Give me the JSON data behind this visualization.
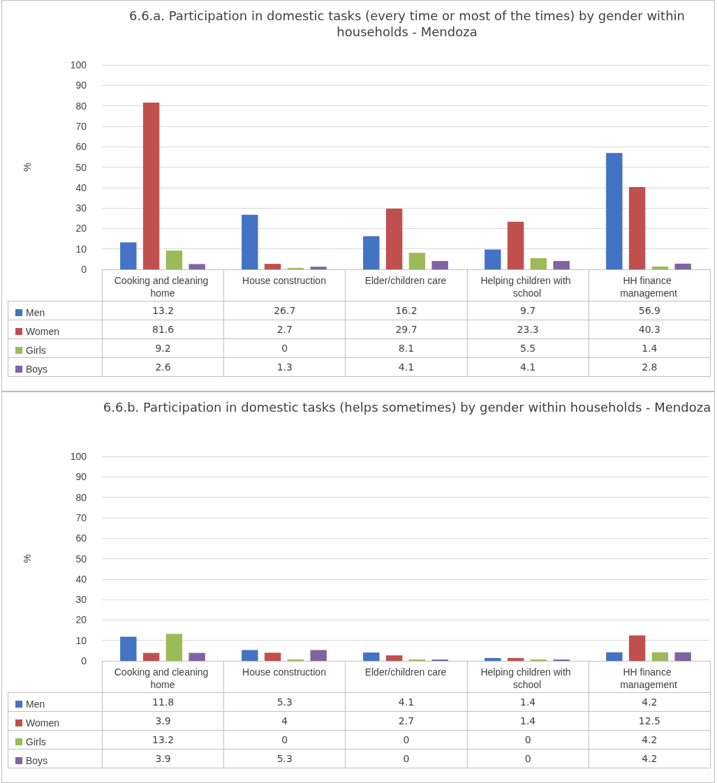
{
  "chart_data": [
    {
      "type": "bar",
      "title": "6.6.a. Participation in domestic tasks (every time or most of the times) by gender within households - Mendoza",
      "ylabel": "%",
      "categories": [
        "Cooking and cleaning home",
        "House construction",
        "Elder/children care",
        "Helping children with school",
        "HH finance management"
      ],
      "series": [
        {
          "name": "Men",
          "color": "#4472c4",
          "values": [
            13.2,
            26.7,
            16.2,
            9.7,
            56.9
          ]
        },
        {
          "name": "Women",
          "color": "#c0504d",
          "values": [
            81.6,
            2.7,
            29.7,
            23.3,
            40.3
          ]
        },
        {
          "name": "Girls",
          "color": "#9bbb59",
          "values": [
            9.2,
            0,
            8.1,
            5.5,
            1.4
          ]
        },
        {
          "name": "Boys",
          "color": "#8064a2",
          "values": [
            2.6,
            1.3,
            4.1,
            4.1,
            2.8
          ]
        }
      ],
      "ylim": [
        0,
        100
      ],
      "yticks": [
        0,
        10,
        20,
        30,
        40,
        50,
        60,
        70,
        80,
        90,
        100
      ],
      "grid": "y",
      "legend": "bottom left",
      "data_labels": true
    },
    {
      "type": "bar",
      "title": "6.6.b. Participation in domestic tasks (helps sometimes) by gender within households - Mendoza",
      "ylabel": "%",
      "categories": [
        "Cooking and cleaning home",
        "House construction",
        "Elder/children care",
        "Helping children with school",
        "HH finance management"
      ],
      "series": [
        {
          "name": "Men",
          "color": "#4472c4",
          "values": [
            11.8,
            5.3,
            4.1,
            1.4,
            4.2
          ]
        },
        {
          "name": "Women",
          "color": "#c0504d",
          "values": [
            3.9,
            4,
            2.7,
            1.4,
            12.5
          ]
        },
        {
          "name": "Girls",
          "color": "#9bbb59",
          "values": [
            13.2,
            0,
            0,
            0,
            4.2
          ]
        },
        {
          "name": "Boys",
          "color": "#8064a2",
          "values": [
            3.9,
            5.3,
            0,
            0,
            4.2
          ]
        }
      ],
      "ylim": [
        0,
        100
      ],
      "yticks": [
        0,
        10,
        20,
        30,
        40,
        50,
        60,
        70,
        80,
        90,
        100
      ],
      "grid": "y",
      "legend": "bottom left",
      "data_labels": true
    }
  ]
}
